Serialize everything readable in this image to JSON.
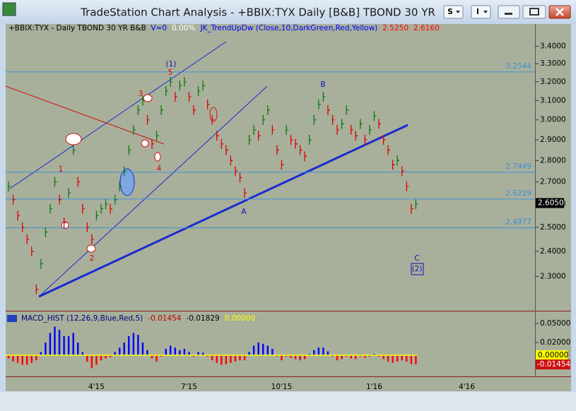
{
  "window": {
    "title": "TradeStation Chart Analysis - +BBIX:TYX Daily [B&B] TBOND 30 YR",
    "menu_buttons": [
      "S",
      "I"
    ]
  },
  "chart_data": [
    {
      "type": "price",
      "header": [
        {
          "text": "+BBIX:TYX - Daily  TBOND 30 YR  B&B",
          "color": "#000000"
        },
        {
          "text": "V=0",
          "color": "#0000ff"
        },
        {
          "text": "0.00%",
          "color": "#ffffff"
        },
        {
          "text": "JK_TrendUpDw (Close,10,DarkGreen,Red,Yellow)",
          "color": "#0000ff"
        },
        {
          "text": "2.5250",
          "color": "#ff0000"
        },
        {
          "text": "2.6160",
          "color": "#ff0000"
        }
      ],
      "categories": [
        null,
        null,
        null,
        null,
        null,
        null,
        null,
        null,
        null,
        null,
        null,
        null,
        null,
        null,
        null,
        null,
        null,
        null,
        null,
        "4'15",
        null,
        null,
        null,
        null,
        null,
        null,
        null,
        null,
        null,
        null,
        null,
        null,
        null,
        null,
        null,
        null,
        null,
        null,
        null,
        "7'15",
        null,
        null,
        null,
        null,
        null,
        null,
        null,
        null,
        null,
        null,
        null,
        null,
        null,
        null,
        null,
        null,
        null,
        null,
        null,
        "10'15",
        null,
        null,
        null,
        null,
        null,
        null,
        null,
        null,
        null,
        null,
        null,
        null,
        null,
        null,
        null,
        null,
        null,
        null,
        null,
        "1'16",
        null,
        null,
        null,
        null,
        null,
        null,
        null,
        null,
        null,
        null,
        null,
        null,
        null,
        null,
        null,
        null,
        null,
        null,
        null,
        "4'16",
        null,
        null,
        null,
        null,
        null,
        null,
        null,
        null,
        null,
        null,
        null,
        null,
        null,
        null,
        null
      ],
      "values": [
        2.68,
        2.62,
        2.55,
        2.5,
        2.45,
        2.4,
        2.25,
        2.35,
        2.48,
        2.58,
        2.7,
        2.62,
        2.52,
        2.65,
        2.85,
        2.7,
        2.58,
        2.5,
        2.45,
        2.55,
        2.58,
        2.6,
        2.58,
        2.62,
        2.68,
        2.75,
        2.85,
        2.95,
        3.05,
        3.1,
        3.0,
        2.88,
        2.92,
        3.05,
        3.15,
        3.2,
        3.12,
        3.18,
        3.2,
        3.12,
        3.05,
        3.15,
        3.18,
        3.08,
        3.0,
        2.92,
        2.88,
        2.85,
        2.8,
        2.75,
        2.72,
        2.65,
        2.9,
        2.95,
        2.92,
        3.0,
        3.05,
        2.95,
        2.85,
        2.78,
        2.95,
        2.9,
        2.88,
        2.85,
        2.82,
        2.9,
        3.0,
        3.08,
        3.12,
        3.05,
        3.0,
        2.95,
        2.98,
        3.05,
        2.95,
        2.92,
        2.98,
        2.9,
        2.95,
        3.02,
        2.98,
        2.9,
        2.85,
        2.78,
        2.8,
        2.75,
        2.68,
        2.58,
        2.6,
        null,
        null,
        null,
        null,
        null,
        null,
        null,
        null,
        null,
        null,
        null,
        null,
        null,
        null,
        null,
        null,
        null,
        null,
        null,
        null,
        null,
        null,
        null,
        null,
        null,
        null
      ],
      "log": true,
      "ylim": [
        2.17,
        3.53
      ],
      "yticks": [
        {
          "value": 2.3,
          "label": "2.3000"
        },
        {
          "value": 2.4,
          "label": "2.4000"
        },
        {
          "value": 2.5,
          "label": "2.5000"
        },
        {
          "value": 2.6,
          "label": "2.6000"
        },
        {
          "value": 2.7,
          "label": "2.7000"
        },
        {
          "value": 2.8,
          "label": "2.8000"
        },
        {
          "value": 2.9,
          "label": "2.9000"
        },
        {
          "value": 3.0,
          "label": "3.0000"
        },
        {
          "value": 3.1,
          "label": "3.1000"
        },
        {
          "value": 3.2,
          "label": "3.2000"
        },
        {
          "value": 3.3,
          "label": "3.3000"
        },
        {
          "value": 3.4,
          "label": "3.4000"
        }
      ],
      "colors": {
        "up": "#0b7a0b",
        "down": "#e00000"
      },
      "levels": [
        {
          "value": 3.2544,
          "label": "3.2544"
        },
        {
          "value": 2.7449,
          "label": "2.7449"
        },
        {
          "value": 2.6229,
          "label": "2.6229"
        },
        {
          "value": 2.4977,
          "label": "2.4977"
        }
      ],
      "level_color": "#3f8fd8",
      "last": {
        "value": 2.605,
        "label": "2.6050"
      },
      "annotations": [
        {
          "text": "(1)",
          "color": "#1414b4"
        },
        {
          "text": "5",
          "color": "#e00000"
        },
        {
          "text": "3",
          "color": "#e00000"
        },
        {
          "text": "1",
          "color": "#e00000"
        },
        {
          "text": "2",
          "color": "#e00000"
        },
        {
          "text": "4",
          "color": "#e00000"
        },
        {
          "text": "B",
          "color": "#1414b4"
        },
        {
          "text": "A",
          "color": "#1414b4"
        },
        {
          "text": "C",
          "color": "#1414b4"
        },
        {
          "text": "(2)",
          "color": "#1414b4"
        }
      ]
    },
    {
      "type": "histogram",
      "header": [
        {
          "text": "MACD_HIST (12,26,9,Blue,Red,5)",
          "color": "#000080"
        },
        {
          "text": "-0.01454",
          "color": "#c00000"
        },
        {
          "text": "-0.01829",
          "color": "#000000"
        },
        {
          "text": "0.00000",
          "color": "#ffff00"
        }
      ],
      "values": [
        -0.005,
        -0.01,
        -0.012,
        -0.015,
        -0.015,
        -0.012,
        -0.008,
        0.005,
        0.02,
        0.035,
        0.045,
        0.04,
        0.03,
        0.03,
        0.035,
        0.02,
        0.005,
        -0.01,
        -0.02,
        -0.015,
        -0.008,
        -0.005,
        -0.003,
        0.005,
        0.012,
        0.02,
        0.03,
        0.035,
        0.032,
        0.02,
        0.008,
        -0.005,
        -0.01,
        -0.002,
        0.01,
        0.015,
        0.012,
        0.008,
        0.01,
        0.005,
        -0.002,
        0.005,
        0.004,
        -0.002,
        -0.008,
        -0.012,
        -0.015,
        -0.014,
        -0.012,
        -0.01,
        -0.008,
        -0.008,
        0.005,
        0.015,
        0.02,
        0.018,
        0.015,
        0.01,
        -0.002,
        -0.008,
        -0.002,
        -0.004,
        -0.006,
        -0.008,
        -0.006,
        0.002,
        0.008,
        0.012,
        0.012,
        0.006,
        -0.002,
        -0.008,
        -0.006,
        -0.002,
        -0.005,
        -0.006,
        -0.002,
        -0.004,
        -0.002,
        0.002,
        -0.002,
        -0.006,
        -0.01,
        -0.012,
        -0.01,
        -0.008,
        -0.01,
        -0.014,
        -0.01454,
        null,
        null,
        null,
        null,
        null,
        null,
        null,
        null,
        null,
        null,
        null,
        null,
        null,
        null,
        null,
        null,
        null,
        null,
        null,
        null,
        null,
        null,
        null,
        null,
        null,
        null
      ],
      "ylim": [
        -0.0333,
        0.0667
      ],
      "yticks": [
        {
          "value": 0.05,
          "label": "0.05000"
        },
        {
          "value": 0.02,
          "label": "0.02000"
        }
      ],
      "zero": {
        "value": 0,
        "color": "#ffff00"
      },
      "last": {
        "value": -0.01454
      },
      "colors": {
        "up": "#0000ff",
        "down": "#ff0000"
      }
    }
  ]
}
